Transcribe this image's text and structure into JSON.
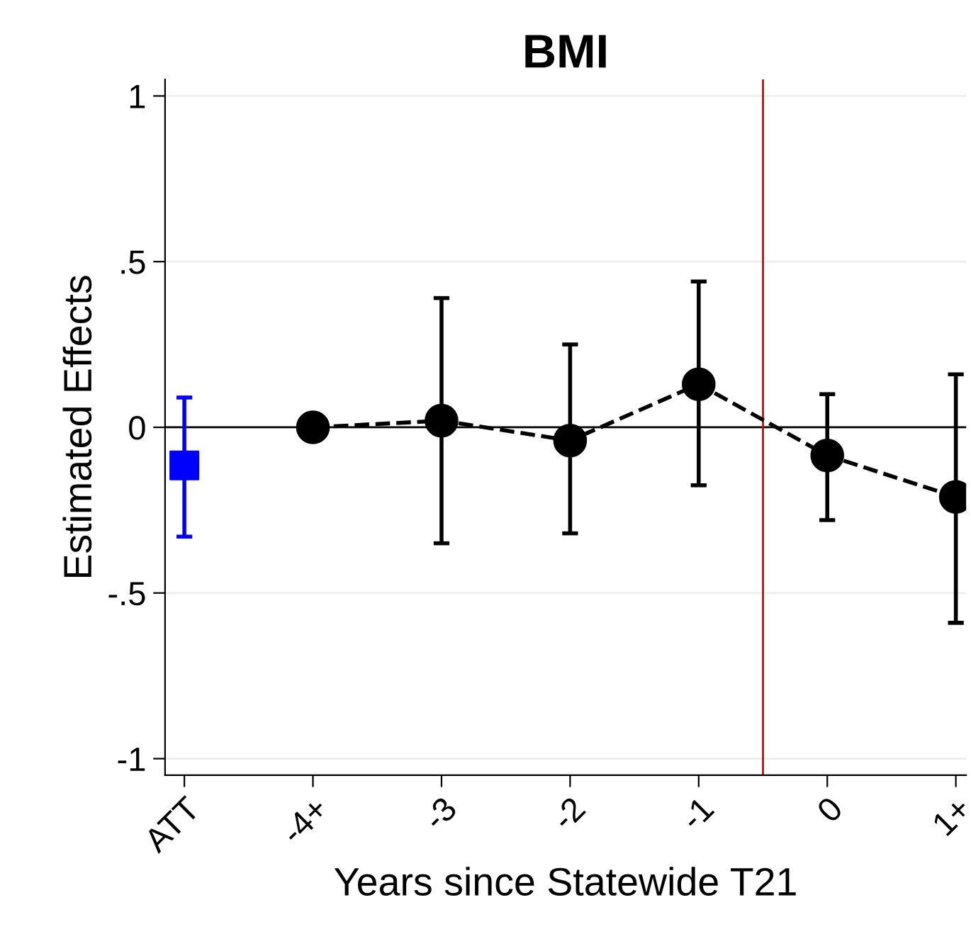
{
  "chart_data": {
    "type": "scatter",
    "title": "BMI",
    "xlabel": "Years since Statewide T21",
    "ylabel": "Estimated Effects",
    "x": [
      -5,
      -4,
      -3,
      -2,
      -1,
      0,
      1
    ],
    "series": [
      {
        "color": "#0000ff",
        "marker": "square",
        "values": [
          -0.115,
          null,
          null,
          null,
          null,
          null,
          null
        ],
        "errors": [
          [
            -0.33,
            0.09
          ],
          null,
          null,
          null,
          null,
          null,
          null
        ]
      },
      {
        "type": "line",
        "color": "#000000",
        "marker": "circle",
        "line_style": "dashed",
        "values": [
          null,
          0,
          0.02,
          -0.04,
          0.13,
          -0.085,
          -0.21
        ],
        "errors": [
          null,
          null,
          [
            -0.35,
            0.39
          ],
          [
            -0.32,
            0.25
          ],
          [
            -0.175,
            0.44
          ],
          [
            -0.28,
            0.1
          ],
          [
            -0.59,
            0.16
          ]
        ]
      }
    ],
    "xlim": [
      -5.15,
      1.08
    ],
    "xticks": [
      {
        "value": -5,
        "label": "ATT"
      },
      {
        "value": -4,
        "label": "-4+"
      },
      {
        "value": -3,
        "label": "-3"
      },
      {
        "value": -2,
        "label": "-2"
      },
      {
        "value": -1,
        "label": "-1"
      },
      {
        "value": 0,
        "label": "0"
      },
      {
        "value": 1,
        "label": "1+"
      }
    ],
    "ylim": [
      -1.05,
      1.05
    ],
    "yticks": [
      {
        "value": -1,
        "label": "-1"
      },
      {
        "value": -0.5,
        "label": "-.5"
      },
      {
        "value": 0,
        "label": "0"
      },
      {
        "value": 0.5,
        "label": ".5"
      },
      {
        "value": 1,
        "label": "1"
      }
    ],
    "grid": "y",
    "legend": false,
    "ref_lines": [
      {
        "axis": "y",
        "value": 0,
        "color": "#000000"
      },
      {
        "axis": "x",
        "value": -0.5,
        "color": "#e00000"
      }
    ]
  }
}
